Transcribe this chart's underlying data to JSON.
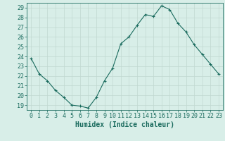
{
  "x": [
    0,
    1,
    2,
    3,
    4,
    5,
    6,
    7,
    8,
    9,
    10,
    11,
    12,
    13,
    14,
    15,
    16,
    17,
    18,
    19,
    20,
    21,
    22,
    23
  ],
  "y": [
    23.8,
    22.2,
    21.5,
    20.5,
    19.8,
    19.0,
    18.9,
    18.7,
    19.8,
    21.5,
    22.8,
    25.3,
    26.0,
    27.2,
    28.3,
    28.1,
    29.2,
    28.8,
    27.4,
    26.5,
    25.2,
    24.2,
    23.2,
    22.2
  ],
  "line_color": "#1a6b5e",
  "marker": "+",
  "marker_size": 3,
  "bg_color": "#d8eee8",
  "grid_color": "#c0d8d0",
  "axis_label_color": "#1a6b5e",
  "tick_label_color": "#1a6b5e",
  "xlabel": "Humidex (Indice chaleur)",
  "title": "",
  "ylim": [
    18.5,
    29.5
  ],
  "xlim": [
    -0.5,
    23.5
  ],
  "yticks": [
    19,
    20,
    21,
    22,
    23,
    24,
    25,
    26,
    27,
    28,
    29
  ],
  "xticks": [
    0,
    1,
    2,
    3,
    4,
    5,
    6,
    7,
    8,
    9,
    10,
    11,
    12,
    13,
    14,
    15,
    16,
    17,
    18,
    19,
    20,
    21,
    22,
    23
  ],
  "xtick_labels": [
    "0",
    "1",
    "2",
    "3",
    "4",
    "5",
    "6",
    "7",
    "8",
    "9",
    "10",
    "11",
    "12",
    "13",
    "14",
    "15",
    "16",
    "17",
    "18",
    "19",
    "20",
    "21",
    "22",
    "23"
  ],
  "font_size": 6,
  "xlabel_font_size": 7
}
